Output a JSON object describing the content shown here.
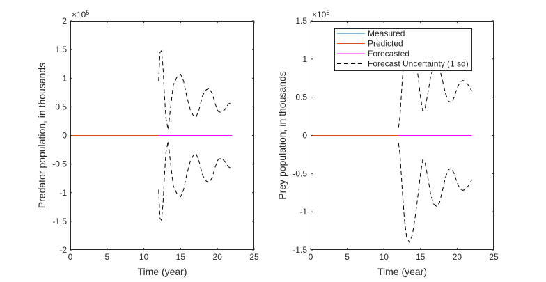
{
  "chart_data": [
    {
      "type": "line",
      "xlabel": "Time (year)",
      "ylabel": "Predator population, in thousands",
      "exponent_label": "×10",
      "exponent_power": "5",
      "xlim": [
        0,
        25
      ],
      "ylim": [
        -2,
        2
      ],
      "x_ticks": [
        0,
        5,
        10,
        15,
        20,
        25
      ],
      "y_ticks": [
        -2,
        -1.5,
        -1,
        -0.5,
        0,
        0.5,
        1,
        1.5,
        2
      ],
      "x_tick_labels": [
        "0",
        "5",
        "10",
        "15",
        "20",
        "25"
      ],
      "y_tick_labels": [
        "-2",
        "-1.5",
        "-1",
        "-0.5",
        "0",
        "0.5",
        "1",
        "1.5",
        "2"
      ],
      "series": [
        {
          "name": "Measured",
          "color": "#0072BD",
          "style": "solid",
          "x": [
            0,
            22
          ],
          "y": [
            0,
            0
          ]
        },
        {
          "name": "Predicted",
          "color": "#D95319",
          "style": "solid",
          "x": [
            0,
            12
          ],
          "y": [
            0,
            0
          ]
        },
        {
          "name": "Forecasted",
          "color": "#FF00FF",
          "style": "solid",
          "x": [
            12,
            22
          ],
          "y": [
            0,
            0
          ]
        },
        {
          "name": "Forecast Uncertainty (1 sd)",
          "color": "#000000",
          "style": "dashed",
          "mirrored": true,
          "x": [
            12.0,
            12.2,
            12.4,
            12.6,
            12.8,
            13.0,
            13.3,
            13.6,
            14.0,
            14.5,
            15.0,
            15.4,
            15.8,
            16.3,
            16.8,
            17.1,
            17.5,
            18.0,
            18.5,
            18.9,
            19.3,
            19.7,
            20.1,
            20.5,
            21.0,
            21.5,
            22.0
          ],
          "y": [
            0.95,
            1.45,
            1.48,
            1.2,
            0.7,
            0.3,
            0.1,
            0.45,
            0.88,
            1.02,
            1.07,
            0.95,
            0.7,
            0.45,
            0.33,
            0.32,
            0.45,
            0.7,
            0.8,
            0.82,
            0.73,
            0.55,
            0.42,
            0.4,
            0.45,
            0.55,
            0.58
          ]
        }
      ]
    },
    {
      "type": "line",
      "xlabel": "Time (year)",
      "ylabel": "Prey population, in thousands",
      "exponent_label": "×10",
      "exponent_power": "5",
      "xlim": [
        0,
        25
      ],
      "ylim": [
        -1.5,
        1.5
      ],
      "x_ticks": [
        0,
        5,
        10,
        15,
        20,
        25
      ],
      "y_ticks": [
        -1.5,
        -1,
        -0.5,
        0,
        0.5,
        1,
        1.5
      ],
      "x_tick_labels": [
        "0",
        "5",
        "10",
        "15",
        "20",
        "25"
      ],
      "y_tick_labels": [
        "-1.5",
        "-1",
        "-0.5",
        "0",
        "0.5",
        "1",
        "1.5"
      ],
      "legend": {
        "placement": "top-right",
        "entries": [
          {
            "label": "Measured",
            "color": "#0072BD",
            "style": "solid"
          },
          {
            "label": "Predicted",
            "color": "#D95319",
            "style": "solid"
          },
          {
            "label": "Forecasted",
            "color": "#FF00FF",
            "style": "solid"
          },
          {
            "label": "Forecast Uncertainty (1 sd)",
            "color": "#000000",
            "style": "dashed"
          }
        ]
      },
      "series": [
        {
          "name": "Measured",
          "color": "#0072BD",
          "style": "solid",
          "x": [
            0,
            22
          ],
          "y": [
            0,
            0
          ]
        },
        {
          "name": "Predicted",
          "color": "#D95319",
          "style": "solid",
          "x": [
            0,
            12
          ],
          "y": [
            0,
            0
          ]
        },
        {
          "name": "Forecasted",
          "color": "#FF00FF",
          "style": "solid",
          "x": [
            12,
            22
          ],
          "y": [
            0,
            0
          ]
        },
        {
          "name": "Forecast Uncertainty (1 sd)",
          "color": "#000000",
          "style": "dashed",
          "mirrored": true,
          "x": [
            12.0,
            12.2,
            12.5,
            12.8,
            13.1,
            13.5,
            13.9,
            14.3,
            14.7,
            15.0,
            15.3,
            15.6,
            16.0,
            16.4,
            16.8,
            17.2,
            17.6,
            18.0,
            18.4,
            18.8,
            19.2,
            19.6,
            20.0,
            20.4,
            20.8,
            21.2,
            21.6,
            22.0
          ],
          "y": [
            0.1,
            0.25,
            0.7,
            1.1,
            1.33,
            1.4,
            1.3,
            1.05,
            0.75,
            0.5,
            0.32,
            0.35,
            0.55,
            0.78,
            0.9,
            0.93,
            0.88,
            0.72,
            0.55,
            0.45,
            0.43,
            0.5,
            0.62,
            0.7,
            0.72,
            0.7,
            0.65,
            0.58
          ]
        }
      ]
    }
  ]
}
